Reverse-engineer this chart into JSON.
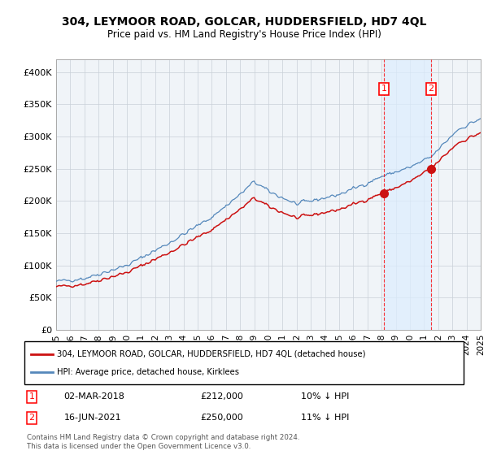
{
  "title": "304, LEYMOOR ROAD, GOLCAR, HUDDERSFIELD, HD7 4QL",
  "subtitle": "Price paid vs. HM Land Registry's House Price Index (HPI)",
  "ylim": [
    0,
    420000
  ],
  "yticks": [
    0,
    50000,
    100000,
    150000,
    200000,
    250000,
    300000,
    350000,
    400000
  ],
  "ytick_labels": [
    "£0",
    "£50K",
    "£100K",
    "£150K",
    "£200K",
    "£250K",
    "£300K",
    "£350K",
    "£400K"
  ],
  "plot_bg_color": "#f0f4f8",
  "grid_color": "#c8d0d8",
  "line1_color": "#cc1111",
  "line2_color": "#5588bb",
  "fill_color": "#ddeeff",
  "sale1": {
    "date": "02-MAR-2018",
    "price": 212000,
    "pct": "10% ↓ HPI"
  },
  "sale2": {
    "date": "16-JUN-2021",
    "price": 250000,
    "pct": "11% ↓ HPI"
  },
  "legend_label1": "304, LEYMOOR ROAD, GOLCAR, HUDDERSFIELD, HD7 4QL (detached house)",
  "legend_label2": "HPI: Average price, detached house, Kirklees",
  "footer1": "Contains HM Land Registry data © Crown copyright and database right 2024.",
  "footer2": "This data is licensed under the Open Government Licence v3.0.",
  "xstart_year": 1995,
  "total_months": 361,
  "sale1_month": 278,
  "sale2_month": 318,
  "xlabel_years": [
    1995,
    1996,
    1997,
    1998,
    1999,
    2000,
    2001,
    2002,
    2003,
    2004,
    2005,
    2006,
    2007,
    2008,
    2009,
    2010,
    2011,
    2012,
    2013,
    2014,
    2015,
    2016,
    2017,
    2018,
    2019,
    2020,
    2021,
    2022,
    2023,
    2024,
    2025
  ]
}
